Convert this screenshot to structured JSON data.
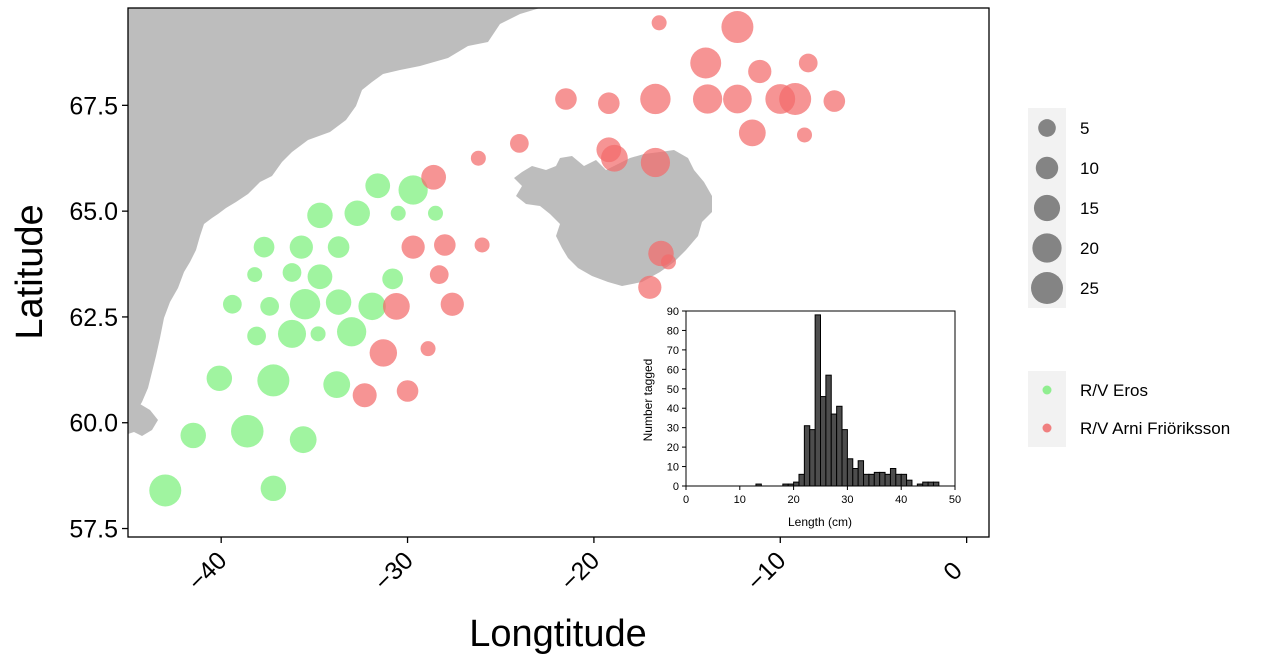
{
  "chart_data": [
    {
      "type": "scatter",
      "title": "",
      "xlabel": "Longtitude",
      "ylabel": "Latitude",
      "xlim": [
        -45,
        1.2
      ],
      "ylim": [
        57.3,
        69.8
      ],
      "xticks": [
        -40,
        -30,
        -20,
        -10,
        0
      ],
      "xtick_labels": [
        "−40",
        "−30",
        "−20",
        "−10",
        "0"
      ],
      "yticks": [
        57.5,
        60.0,
        62.5,
        65.0,
        67.5
      ],
      "ytick_labels": [
        "57.5",
        "60.0",
        "62.5",
        "65.0",
        "67.5"
      ],
      "grid": false,
      "land_color": "#bdbdbd",
      "legend_size": {
        "placement": "right",
        "values": [
          5,
          10,
          15,
          20,
          25
        ],
        "labels": [
          "5",
          "10",
          "15",
          "20",
          "25"
        ]
      },
      "legend_color": {
        "placement": "right",
        "entries": [
          {
            "label": "R/V Eros",
            "color": "#90ee90"
          },
          {
            "label": "R/V Arni Friöriksson",
            "color": "#f08080"
          }
        ]
      },
      "series": [
        {
          "name": "R/V Eros",
          "color": "#7cf07c",
          "points": [
            {
              "x": -43.0,
              "y": 58.4,
              "n": 25
            },
            {
              "x": -37.2,
              "y": 58.45,
              "n": 14
            },
            {
              "x": -41.5,
              "y": 59.7,
              "n": 14
            },
            {
              "x": -38.6,
              "y": 59.8,
              "n": 26
            },
            {
              "x": -35.6,
              "y": 59.6,
              "n": 16
            },
            {
              "x": -40.1,
              "y": 61.05,
              "n": 14
            },
            {
              "x": -37.2,
              "y": 61.0,
              "n": 25
            },
            {
              "x": -33.8,
              "y": 60.9,
              "n": 16
            },
            {
              "x": -38.1,
              "y": 62.05,
              "n": 6
            },
            {
              "x": -36.2,
              "y": 62.1,
              "n": 18
            },
            {
              "x": -34.8,
              "y": 62.1,
              "n": 3
            },
            {
              "x": -33.0,
              "y": 62.15,
              "n": 20
            },
            {
              "x": -39.4,
              "y": 62.8,
              "n": 6
            },
            {
              "x": -37.4,
              "y": 62.75,
              "n": 6
            },
            {
              "x": -35.5,
              "y": 62.8,
              "n": 22
            },
            {
              "x": -33.7,
              "y": 62.85,
              "n": 14
            },
            {
              "x": -31.9,
              "y": 62.75,
              "n": 17
            },
            {
              "x": -38.2,
              "y": 63.5,
              "n": 3
            },
            {
              "x": -36.2,
              "y": 63.55,
              "n": 6
            },
            {
              "x": -34.7,
              "y": 63.45,
              "n": 13
            },
            {
              "x": -30.8,
              "y": 63.4,
              "n": 8
            },
            {
              "x": -37.7,
              "y": 64.15,
              "n": 8
            },
            {
              "x": -35.7,
              "y": 64.15,
              "n": 11
            },
            {
              "x": -33.7,
              "y": 64.15,
              "n": 9
            },
            {
              "x": -34.7,
              "y": 64.9,
              "n": 14
            },
            {
              "x": -32.7,
              "y": 64.95,
              "n": 14
            },
            {
              "x": -30.5,
              "y": 64.95,
              "n": 3
            },
            {
              "x": -28.5,
              "y": 64.95,
              "n": 3
            },
            {
              "x": -31.6,
              "y": 65.6,
              "n": 13
            },
            {
              "x": -29.7,
              "y": 65.5,
              "n": 20
            }
          ]
        },
        {
          "name": "R/V Arni Friöriksson",
          "color": "#f26b6b",
          "points": [
            {
              "x": -32.3,
              "y": 60.65,
              "n": 12
            },
            {
              "x": -30.0,
              "y": 60.75,
              "n": 9
            },
            {
              "x": -31.3,
              "y": 61.65,
              "n": 17
            },
            {
              "x": -28.9,
              "y": 61.75,
              "n": 3
            },
            {
              "x": -30.6,
              "y": 62.75,
              "n": 16
            },
            {
              "x": -27.6,
              "y": 62.8,
              "n": 11
            },
            {
              "x": -28.3,
              "y": 63.5,
              "n": 6
            },
            {
              "x": -29.7,
              "y": 64.15,
              "n": 11
            },
            {
              "x": -28.0,
              "y": 64.2,
              "n": 9
            },
            {
              "x": -26.0,
              "y": 64.2,
              "n": 3
            },
            {
              "x": -28.6,
              "y": 65.8,
              "n": 13
            },
            {
              "x": -26.2,
              "y": 66.25,
              "n": 3
            },
            {
              "x": -24.0,
              "y": 66.6,
              "n": 6
            },
            {
              "x": -19.2,
              "y": 66.45,
              "n": 13
            },
            {
              "x": -18.9,
              "y": 66.25,
              "n": 16
            },
            {
              "x": -16.7,
              "y": 66.15,
              "n": 20
            },
            {
              "x": -16.4,
              "y": 64.0,
              "n": 14
            },
            {
              "x": -16.0,
              "y": 63.8,
              "n": 3
            },
            {
              "x": -17.0,
              "y": 63.2,
              "n": 11
            },
            {
              "x": -21.5,
              "y": 67.65,
              "n": 9
            },
            {
              "x": -19.2,
              "y": 67.55,
              "n": 9
            },
            {
              "x": -16.7,
              "y": 67.65,
              "n": 22
            },
            {
              "x": -13.9,
              "y": 67.65,
              "n": 20
            },
            {
              "x": -12.3,
              "y": 67.65,
              "n": 19
            },
            {
              "x": -10.0,
              "y": 67.65,
              "n": 21
            },
            {
              "x": -9.2,
              "y": 67.65,
              "n": 25
            },
            {
              "x": -7.1,
              "y": 67.6,
              "n": 9
            },
            {
              "x": -11.5,
              "y": 66.85,
              "n": 16
            },
            {
              "x": -8.7,
              "y": 66.8,
              "n": 3
            },
            {
              "x": -14.0,
              "y": 68.5,
              "n": 23
            },
            {
              "x": -11.1,
              "y": 68.3,
              "n": 11
            },
            {
              "x": -8.5,
              "y": 68.5,
              "n": 6
            },
            {
              "x": -16.5,
              "y": 69.45,
              "n": 3
            },
            {
              "x": -12.3,
              "y": 69.35,
              "n": 25
            }
          ]
        }
      ]
    },
    {
      "type": "bar",
      "title": "",
      "xlabel": "Length (cm)",
      "ylabel": "Number tagged",
      "xlim": [
        0,
        50
      ],
      "ylim": [
        0,
        90
      ],
      "xticks": [
        0,
        10,
        20,
        30,
        40,
        50
      ],
      "yticks": [
        0,
        10,
        20,
        30,
        40,
        50,
        60,
        70,
        80,
        90
      ],
      "bin_width": 1,
      "bin_starts": [
        13,
        14,
        15,
        16,
        17,
        18,
        19,
        20,
        21,
        22,
        23,
        24,
        25,
        26,
        27,
        28,
        29,
        30,
        31,
        32,
        33,
        34,
        35,
        36,
        37,
        38,
        39,
        40,
        41,
        42,
        43,
        44,
        45,
        46
      ],
      "values": [
        1,
        0,
        0,
        0,
        0,
        1,
        1,
        2,
        6,
        31,
        29,
        88,
        46,
        57,
        37,
        41,
        29,
        14,
        9,
        13,
        6,
        6,
        7,
        7,
        6,
        9,
        6,
        6,
        3,
        0,
        1,
        2,
        2,
        2
      ]
    }
  ]
}
